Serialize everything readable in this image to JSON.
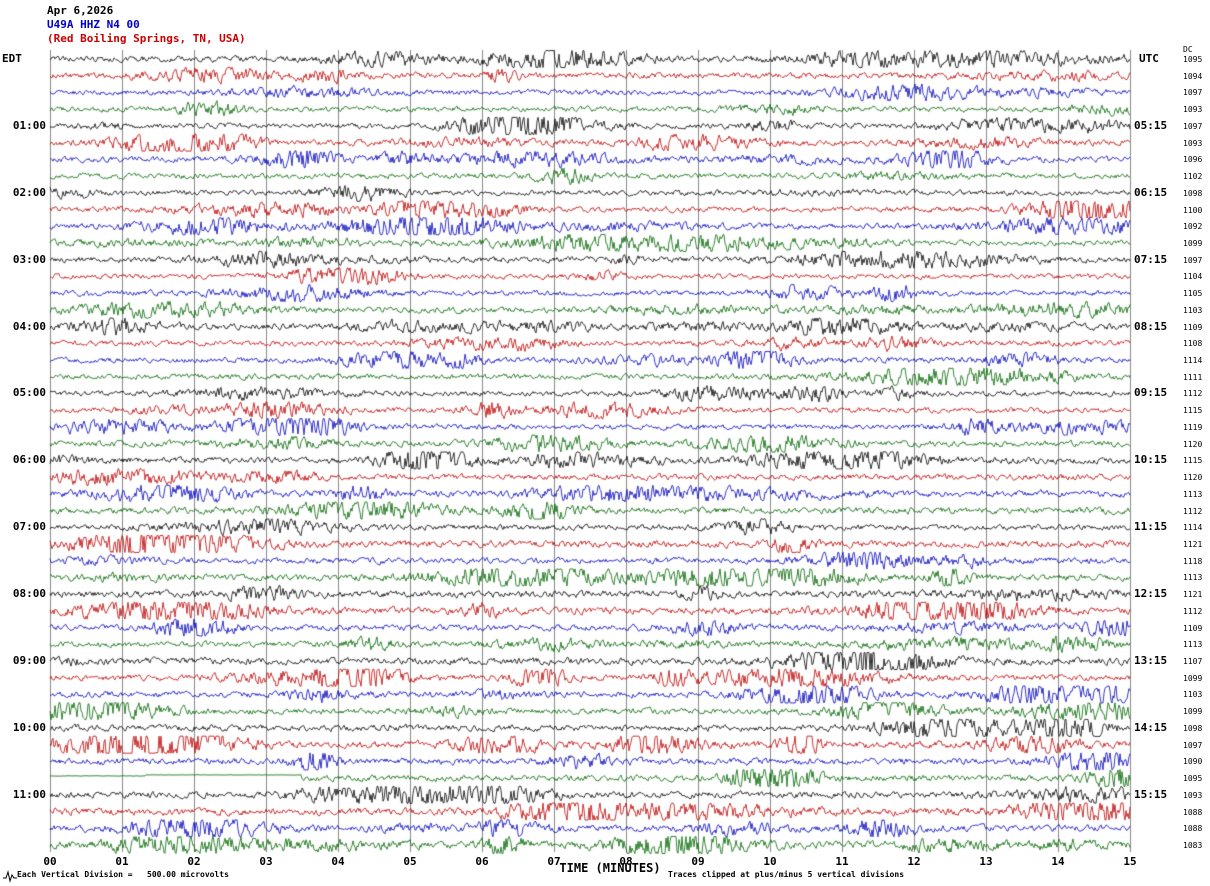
{
  "header": {
    "date": "Apr 6,2026",
    "station": "U49A HHZ N4 00",
    "location": "(Red Boiling Springs, TN, USA)"
  },
  "axes": {
    "left_timezone_label": "EDT",
    "right_timezone_label": "UTC",
    "dc_column_label": "DC",
    "x_axis_title": "TIME (MINUTES)",
    "x_ticks": [
      "00",
      "01",
      "02",
      "03",
      "04",
      "05",
      "06",
      "07",
      "08",
      "09",
      "10",
      "11",
      "12",
      "13",
      "14",
      "15"
    ]
  },
  "footer": {
    "scale_note": "Each Vertical Division =   500.00 microvolts",
    "clip_note": "Traces clipped at plus/minus 5 vertical divisions"
  },
  "colors": {
    "trace_cycle": [
      "#000000",
      "#bb0000",
      "#0000bb",
      "#006600"
    ],
    "grid": "#888888",
    "title_date": "#000000",
    "title_station": "#0000cc",
    "title_location": "#cc0000"
  },
  "chart_data": {
    "type": "line",
    "title": "U49A HHZ N4 00 helicorder, Apr 6,2026, Red Boiling Springs, TN, USA",
    "xlabel": "TIME (MINUTES)",
    "x_range_minutes": [
      0,
      15
    ],
    "minutes_per_row": 15,
    "rows_per_hour": 4,
    "clip_divisions": 5,
    "microvolts_per_division": 500.0,
    "description": "48 consecutive 15-minute seismic trace segments (band-limited noise), colored in a repeating black/red/blue/green cycle. Black rows mark the top of each EDT hour; right labels give UTC time (EDT+4:15 offset as labeled); DC column gives per-row DC offset in microvolts.",
    "rows": [
      {
        "edt": "EDT",
        "utc": "UTC",
        "dc": 1095
      },
      {
        "dc": 1094
      },
      {
        "dc": 1097
      },
      {
        "dc": 1093
      },
      {
        "edt": "01:00",
        "utc": "05:15",
        "dc": 1097
      },
      {
        "dc": 1093
      },
      {
        "dc": 1096
      },
      {
        "dc": 1102
      },
      {
        "edt": "02:00",
        "utc": "06:15",
        "dc": 1098
      },
      {
        "dc": 1100
      },
      {
        "dc": 1092
      },
      {
        "dc": 1099
      },
      {
        "edt": "03:00",
        "utc": "07:15",
        "dc": 1097
      },
      {
        "dc": 1104
      },
      {
        "dc": 1105
      },
      {
        "dc": 1103
      },
      {
        "edt": "04:00",
        "utc": "08:15",
        "dc": 1109
      },
      {
        "dc": 1108
      },
      {
        "dc": 1114
      },
      {
        "dc": 1111
      },
      {
        "edt": "05:00",
        "utc": "09:15",
        "dc": 1112
      },
      {
        "dc": 1115
      },
      {
        "dc": 1119
      },
      {
        "dc": 1120
      },
      {
        "edt": "06:00",
        "utc": "10:15",
        "dc": 1115
      },
      {
        "dc": 1120
      },
      {
        "dc": 1113
      },
      {
        "dc": 1112
      },
      {
        "edt": "07:00",
        "utc": "11:15",
        "dc": 1114
      },
      {
        "dc": 1121
      },
      {
        "dc": 1118
      },
      {
        "dc": 1113
      },
      {
        "edt": "08:00",
        "utc": "12:15",
        "dc": 1121
      },
      {
        "dc": 1112
      },
      {
        "dc": 1109
      },
      {
        "dc": 1113
      },
      {
        "edt": "09:00",
        "utc": "13:15",
        "dc": 1107
      },
      {
        "dc": 1099
      },
      {
        "dc": 1103
      },
      {
        "dc": 1099
      },
      {
        "edt": "10:00",
        "utc": "14:15",
        "dc": 1098
      },
      {
        "dc": 1097
      },
      {
        "dc": 1090
      },
      {
        "dc": 1095,
        "flat_until_min": 3.5
      },
      {
        "edt": "11:00",
        "utc": "15:15",
        "dc": 1093
      },
      {
        "dc": 1088
      },
      {
        "dc": 1088
      },
      {
        "dc": 1083
      }
    ]
  }
}
